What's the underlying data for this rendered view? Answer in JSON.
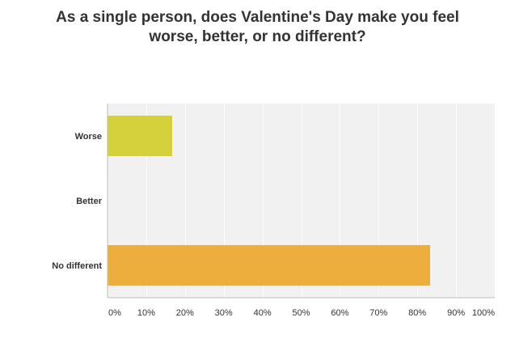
{
  "chart_data": {
    "type": "bar",
    "orientation": "horizontal",
    "title": "As a single person, does Valentine's Day make you feel worse, better, or no different?",
    "categories": [
      "Worse",
      "Better",
      "No different"
    ],
    "values": [
      16.7,
      0,
      83.3
    ],
    "value_unit": "%",
    "colors": [
      "#d5d13c",
      "#9fbc4a",
      "#edae3b"
    ],
    "xlim": [
      0,
      100
    ],
    "x_ticks": [
      0,
      10,
      20,
      30,
      40,
      50,
      60,
      70,
      80,
      90,
      100
    ],
    "x_tick_labels": [
      "0%",
      "10%",
      "20%",
      "30%",
      "40%",
      "50%",
      "60%",
      "70%",
      "80%",
      "90%",
      "100%"
    ],
    "grid": true,
    "legend": "none"
  }
}
